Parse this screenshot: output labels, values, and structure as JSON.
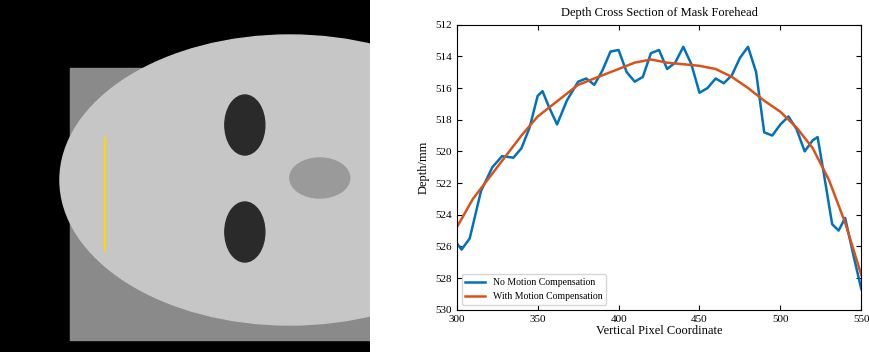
{
  "chart_data": {
    "type": "line",
    "title": "Depth Cross Section of Mask Forehead",
    "x_label": "Vertical Pixel Coordinate",
    "y_label": "Depth/mm",
    "xlim": [
      300,
      550
    ],
    "xticks": [
      300,
      350,
      400,
      450,
      500,
      550
    ],
    "ylim": [
      530,
      512
    ],
    "yticks": [
      512,
      514,
      516,
      518,
      520,
      522,
      524,
      526,
      528,
      530
    ],
    "legend": "lower left",
    "series": [
      {
        "name": "No Motion Compensation",
        "color": "#0072bd",
        "x": [
          300,
          303,
          308,
          315,
          322,
          328,
          335,
          340,
          345,
          350,
          353,
          357,
          362,
          368,
          375,
          380,
          385,
          390,
          395,
          400,
          405,
          410,
          415,
          420,
          425,
          430,
          435,
          440,
          445,
          450,
          455,
          460,
          465,
          470,
          475,
          480,
          485,
          490,
          495,
          500,
          505,
          510,
          515,
          520,
          523,
          527,
          532,
          536,
          540,
          545,
          550
        ],
        "values": [
          525.8,
          526.2,
          525.5,
          522.5,
          521.0,
          520.3,
          520.4,
          519.8,
          518.5,
          516.5,
          516.2,
          517.2,
          518.3,
          516.8,
          515.6,
          515.4,
          515.8,
          514.9,
          513.7,
          513.6,
          515.0,
          515.6,
          515.3,
          513.8,
          513.6,
          514.8,
          514.4,
          513.4,
          514.5,
          516.3,
          516.0,
          515.4,
          515.7,
          515.2,
          514.1,
          513.4,
          515.0,
          518.8,
          519.0,
          518.3,
          517.8,
          518.6,
          520.0,
          519.3,
          519.1,
          521.5,
          524.6,
          525.0,
          524.2,
          526.5,
          528.7
        ]
      },
      {
        "name": "With Motion Compensation",
        "color": "#d95319",
        "x": [
          300,
          310,
          325,
          340,
          350,
          360,
          375,
          390,
          400,
          410,
          420,
          430,
          440,
          450,
          460,
          470,
          480,
          490,
          500,
          510,
          520,
          530,
          540,
          550
        ],
        "values": [
          524.8,
          523.0,
          521.0,
          519.0,
          517.8,
          517.0,
          515.8,
          515.2,
          514.8,
          514.4,
          514.2,
          514.4,
          514.5,
          514.6,
          514.8,
          515.3,
          516.0,
          516.8,
          517.5,
          518.5,
          519.8,
          521.8,
          524.5,
          527.8
        ]
      }
    ]
  }
}
